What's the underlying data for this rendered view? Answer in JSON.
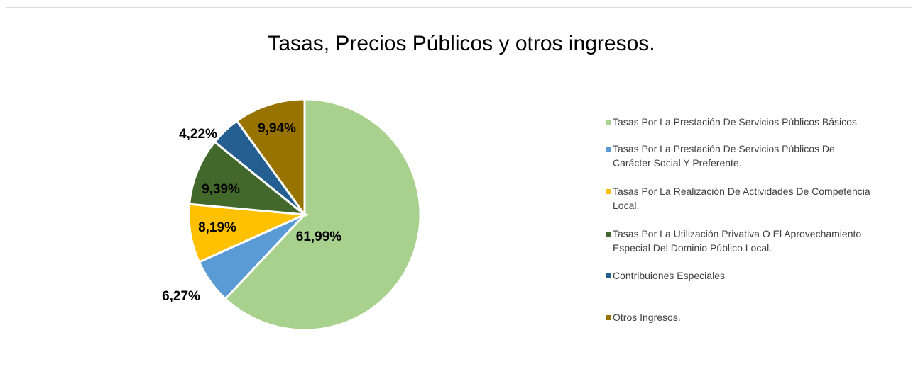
{
  "chart_data": {
    "type": "pie",
    "title": "Tasas, Precios Públicos y otros ingresos.",
    "categories": [
      "Tasas Por La Prestación De Servicios Públicos Básicos",
      "Tasas Por La Prestación De Servicios Públicos De Carácter Social Y Preferente.",
      "Tasas Por La Realización De Actividades De Competencia Local.",
      "Tasas Por La Utilización Privativa O El Aprovechamiento Especial Del Dominio Público Local.",
      "Contribuiones Especiales",
      "Otros Ingresos."
    ],
    "values": [
      61.99,
      6.27,
      8.19,
      9.39,
      4.22,
      9.94
    ],
    "value_labels": [
      "61,99%",
      "6,27%",
      "8,19%",
      "9,39%",
      "4,22%",
      "9,94%"
    ],
    "colors": [
      "#a9d18e",
      "#5b9bd5",
      "#ffc000",
      "#43682b",
      "#255e91",
      "#997300"
    ],
    "legend": "right"
  }
}
